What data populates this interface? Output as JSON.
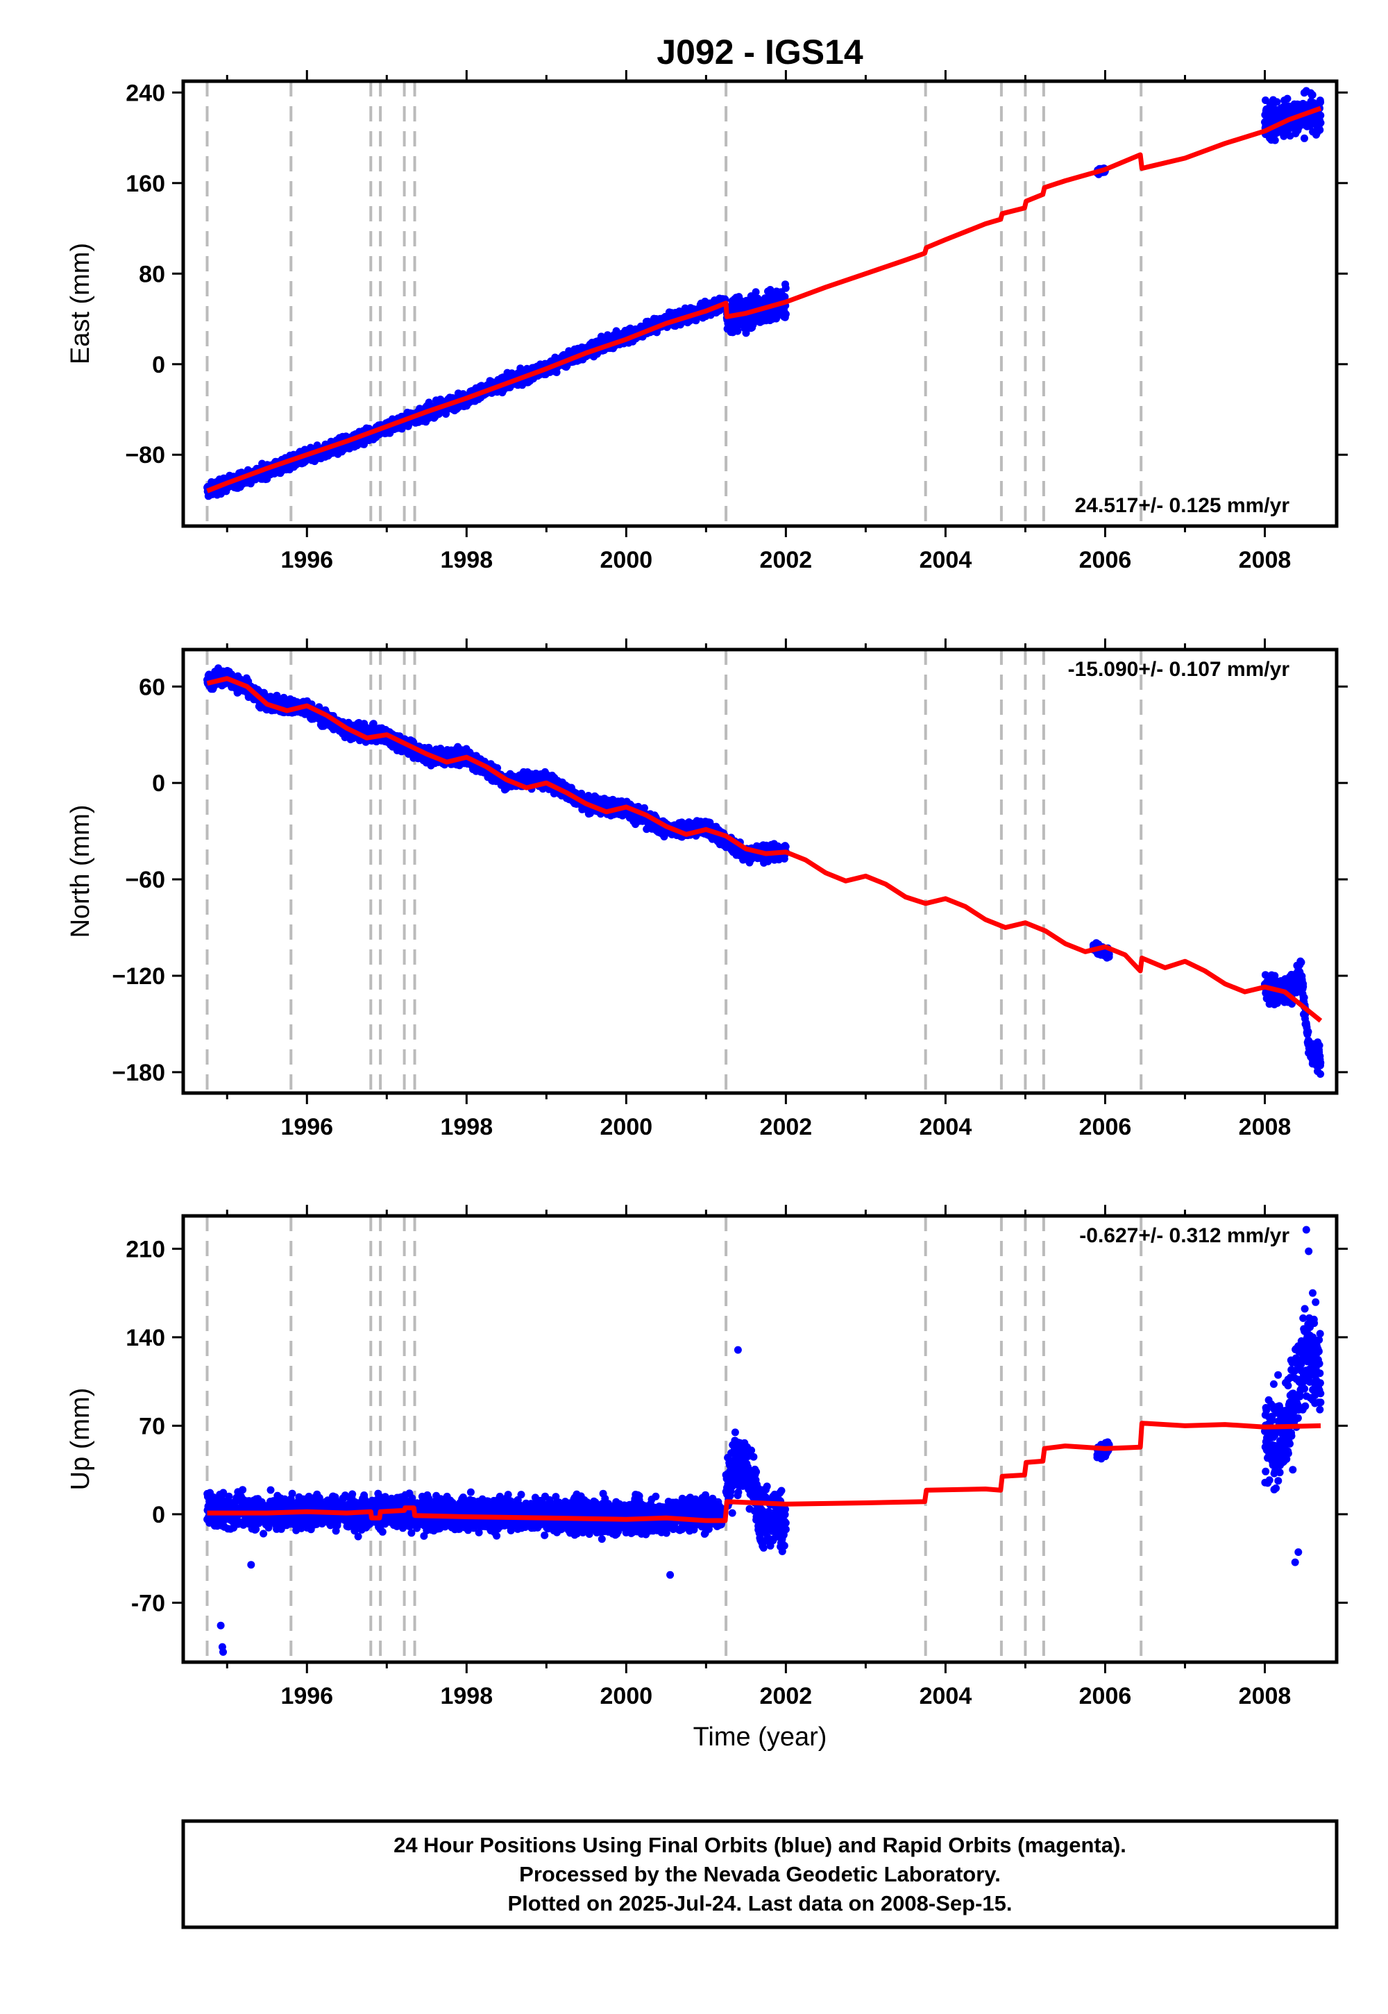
{
  "chart_data": {
    "type": "scatter",
    "title": "J092 - IGS14",
    "xlabel": "Time (year)",
    "xlim": [
      1994.45,
      2008.9
    ],
    "x_ticks": [
      1996,
      1998,
      2000,
      2002,
      2004,
      2006,
      2008
    ],
    "x_tick_labels": [
      "1996",
      "1998",
      "2000",
      "2002",
      "2004",
      "2006",
      "2008"
    ],
    "event_lines": [
      1994.75,
      1995.8,
      1996.8,
      1996.92,
      1997.22,
      1997.35,
      2001.25,
      2003.75,
      2004.7,
      2005.0,
      2005.23,
      2006.45
    ],
    "colors": {
      "observations": "#0000ff",
      "model": "#ff0000",
      "event_lines": "#bbbbbb",
      "frame": "#000000"
    },
    "panels": [
      {
        "id": "east",
        "ylabel": "East (mm)",
        "ylim": [
          -143,
          250
        ],
        "y_ticks": [
          240,
          160,
          80,
          0,
          -80
        ],
        "y_tick_labels": [
          "240",
          "160",
          "80",
          "0",
          "−80"
        ],
        "rate_text": "24.517+/- 0.125 mm/yr",
        "rate_position": "bottom-right",
        "series": [
          {
            "name": "observations",
            "role": "scatter",
            "color": "#0000ff",
            "segments": [
              {
                "x": [
                  1994.75,
                  1995.0,
                  1995.5,
                  1996.0,
                  1996.5,
                  1997.0,
                  1997.5,
                  1998.0,
                  1998.5,
                  1999.0,
                  1999.5,
                  2000.0,
                  2000.5,
                  2001.0,
                  2001.24
                ],
                "y": [
                  -112,
                  -106,
                  -94,
                  -82,
                  -70,
                  -56,
                  -43,
                  -30,
                  -16,
                  -4,
                  12,
                  24,
                  38,
                  47,
                  54
                ],
                "spread": 5
              },
              {
                "x": [
                  2001.26,
                  2001.5,
                  2001.75,
                  2002.0
                ],
                "y": [
                  44,
                  46,
                  50,
                  54
                ],
                "spread": 12
              },
              {
                "x": [
                  2005.9,
                  2006.0
                ],
                "y": [
                  170,
                  172
                ],
                "spread": 2
              },
              {
                "x": [
                  2008.0,
                  2008.3,
                  2008.5,
                  2008.7
                ],
                "y": [
                  213,
                  218,
                  222,
                  220
                ],
                "spread": 14
              }
            ]
          },
          {
            "name": "model",
            "role": "line",
            "color": "#ff0000",
            "x": [
              1994.75,
              1995.0,
              1995.5,
              1996.0,
              1996.5,
              1997.0,
              1997.5,
              1998.0,
              1998.5,
              1999.0,
              1999.5,
              2000.0,
              2000.5,
              2001.0,
              2001.25,
              2001.26,
              2001.5,
              2002.0,
              2002.5,
              2003.0,
              2003.5,
              2003.74,
              2003.76,
              2004.0,
              2004.5,
              2004.69,
              2004.71,
              2004.99,
              2005.01,
              2005.22,
              2005.24,
              2005.5,
              2006.0,
              2006.44,
              2006.46,
              2007.0,
              2007.5,
              2008.0,
              2008.3,
              2008.7
            ],
            "y": [
              -112,
              -105,
              -92,
              -80,
              -68,
              -55,
              -42,
              -30,
              -17,
              -4,
              10,
              22,
              36,
              47,
              54,
              42,
              45,
              55,
              68,
              80,
              92,
              98,
              103,
              110,
              124,
              128,
              133,
              138,
              144,
              150,
              156,
              162,
              172,
              185,
              173,
              182,
              195,
              206,
              216,
              226
            ]
          }
        ]
      },
      {
        "id": "north",
        "ylabel": "North (mm)",
        "ylim": [
          -193,
          83
        ],
        "y_ticks": [
          60,
          0,
          -60,
          -120,
          -180
        ],
        "y_tick_labels": [
          "60",
          "0",
          "−60",
          "−120",
          "−180"
        ],
        "rate_text": "-15.090+/- 0.107 mm/yr",
        "rate_position": "top-right",
        "series": [
          {
            "name": "observations",
            "role": "scatter",
            "color": "#0000ff",
            "segments": [
              {
                "x": [
                  1994.75,
                  1995.0,
                  1995.5,
                  1996.0,
                  1996.5,
                  1997.0,
                  1997.5,
                  1998.0,
                  1998.5,
                  1999.0,
                  1999.5,
                  2000.0,
                  2000.5,
                  2001.0,
                  2001.5,
                  2002.0
                ],
                "y": [
                  63,
                  66,
                  50,
                  46,
                  33,
                  29,
                  17,
                  16,
                  1,
                  2,
                  -13,
                  -16,
                  -29,
                  -28,
                  -44,
                  -43
                ],
                "spread": 4
              },
              {
                "x": [
                  2005.85,
                  2006.05
                ],
                "y": [
                  -102,
                  -106
                ],
                "spread": 3
              },
              {
                "x": [
                  2008.0,
                  2008.3,
                  2008.45,
                  2008.55,
                  2008.7
                ],
                "y": [
                  -128,
                  -130,
                  -118,
                  -165,
                  -172
                ],
                "spread": 7
              }
            ]
          },
          {
            "name": "model",
            "role": "line",
            "color": "#ff0000",
            "x": [
              1994.75,
              1995.0,
              1995.25,
              1995.5,
              1995.75,
              1996.0,
              1996.25,
              1996.5,
              1996.75,
              1997.0,
              1997.25,
              1997.5,
              1997.75,
              1998.0,
              1998.25,
              1998.5,
              1998.75,
              1999.0,
              1999.25,
              1999.5,
              1999.75,
              2000.0,
              2000.25,
              2000.5,
              2000.75,
              2001.0,
              2001.25,
              2001.5,
              2001.75,
              2002.0,
              2002.25,
              2002.5,
              2002.75,
              2003.0,
              2003.25,
              2003.5,
              2003.75,
              2004.0,
              2004.25,
              2004.5,
              2004.75,
              2005.0,
              2005.25,
              2005.5,
              2005.75,
              2006.0,
              2006.25,
              2006.44,
              2006.46,
              2006.75,
              2007.0,
              2007.25,
              2007.5,
              2007.75,
              2008.0,
              2008.25,
              2008.5,
              2008.7
            ],
            "y": [
              62,
              65,
              60,
              49,
              45,
              48,
              42,
              34,
              28,
              30,
              24,
              18,
              13,
              16,
              10,
              2,
              -3,
              0,
              -6,
              -13,
              -18,
              -15,
              -20,
              -27,
              -32,
              -29,
              -33,
              -41,
              -44,
              -43,
              -48,
              -56,
              -61,
              -58,
              -63,
              -71,
              -75,
              -72,
              -77,
              -85,
              -90,
              -87,
              -92,
              -100,
              -105,
              -102,
              -107,
              -117,
              -109,
              -115,
              -111,
              -117,
              -125,
              -130,
              -127,
              -130,
              -140,
              -148
            ]
          }
        ]
      },
      {
        "id": "up",
        "ylabel": "Up (mm)",
        "ylim": [
          -117,
          236
        ],
        "y_ticks": [
          210,
          140,
          70,
          0,
          -70
        ],
        "y_tick_labels": [
          "210",
          "140",
          "70",
          "0",
          "-70"
        ],
        "rate_text": "-0.627+/- 0.312 mm/yr",
        "rate_position": "top-right",
        "series": [
          {
            "name": "observations",
            "role": "scatter",
            "color": "#0000ff",
            "segments": [
              {
                "x": [
                  1994.75,
                  1995.5,
                  1996.5,
                  1997.5,
                  1998.5,
                  1999.5,
                  2000.5,
                  2001.2
                ],
                "y": [
                  3,
                  2,
                  2,
                  0,
                  0,
                  -2,
                  -2,
                  2
                ],
                "spread": 11
              },
              {
                "x": [
                  2001.25,
                  2001.4,
                  2001.55,
                  2001.7,
                  2002.0
                ],
                "y": [
                  20,
                  45,
                  30,
                  0,
                  -5
                ],
                "spread": 20
              },
              {
                "x": [
                  2005.9,
                  2006.05
                ],
                "y": [
                  48,
                  52
                ],
                "spread": 6
              },
              {
                "x": [
                  2008.0,
                  2008.25,
                  2008.4,
                  2008.55,
                  2008.7
                ],
                "y": [
                  55,
                  60,
                  105,
                  130,
                  110
                ],
                "spread": 30
              }
            ],
            "outliers": {
              "x": [
                1994.92,
                1994.94,
                1994.95,
                1995.3,
                2000.55,
                2001.4,
                2008.38,
                2008.42,
                2008.52,
                2008.55,
                2008.6
              ],
              "y": [
                -88,
                -105,
                -109,
                -40,
                -48,
                130,
                -38,
                -30,
                225,
                208,
                175
              ]
            }
          },
          {
            "name": "model",
            "role": "line",
            "color": "#ff0000",
            "x": [
              1994.75,
              1995.5,
              1996.0,
              1996.5,
              1996.8,
              1996.81,
              1996.91,
              1996.92,
              1997.22,
              1997.23,
              1997.34,
              1997.35,
              1998.0,
              1999.0,
              2000.0,
              2000.5,
              2001.0,
              2001.24,
              2001.26,
              2002.0,
              2003.0,
              2003.74,
              2003.76,
              2004.5,
              2004.69,
              2004.71,
              2004.99,
              2005.01,
              2005.22,
              2005.24,
              2005.5,
              2006.0,
              2006.44,
              2006.46,
              2007.0,
              2007.5,
              2008.0,
              2008.7
            ],
            "y": [
              1,
              1,
              2,
              1,
              2,
              -3,
              -3,
              2,
              3,
              5,
              5,
              -1,
              -2,
              -3,
              -4,
              -3,
              -5,
              -5,
              10,
              8,
              9,
              10,
              19,
              20,
              19,
              30,
              31,
              41,
              42,
              52,
              54,
              52,
              53,
              72,
              70,
              71,
              69,
              70
            ]
          }
        ]
      }
    ]
  },
  "footer": {
    "line1": "24 Hour Positions Using Final Orbits (blue) and Rapid Orbits (magenta).",
    "line2": "Processed by the Nevada Geodetic Laboratory.",
    "line3": "Plotted on 2025-Jul-24. Last data on 2008-Sep-15."
  }
}
